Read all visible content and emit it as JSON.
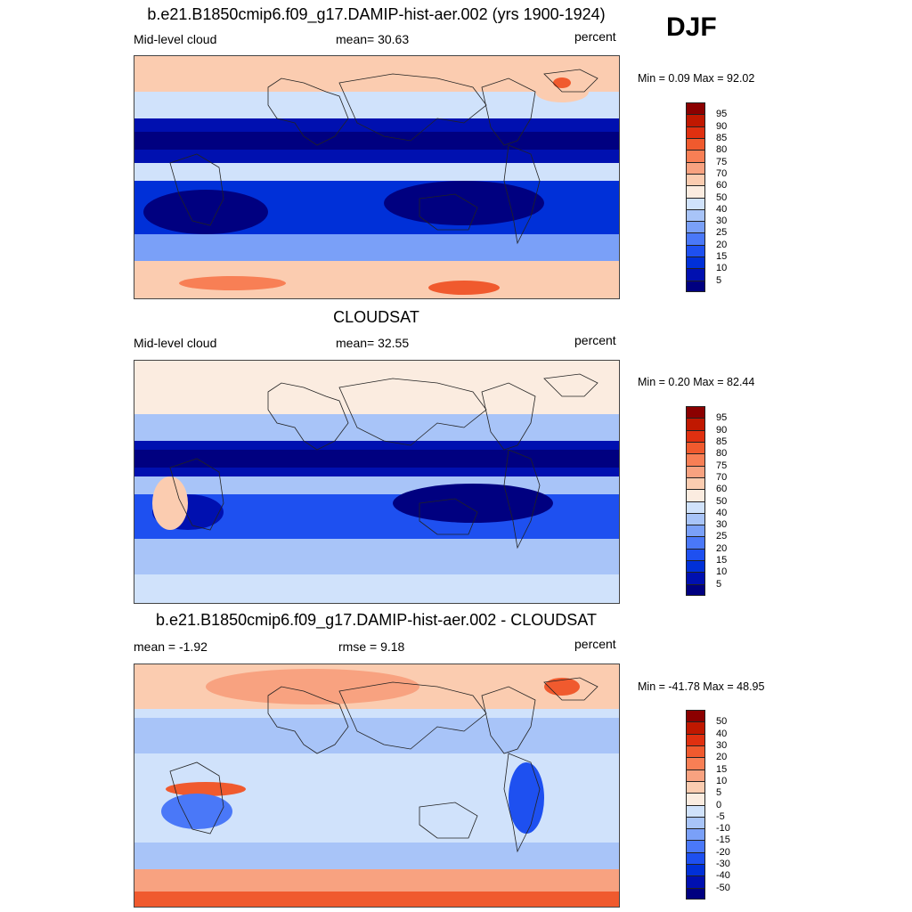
{
  "season": "DJF",
  "colors": {
    "scale": [
      "#000080",
      "#0010b0",
      "#0030d8",
      "#1e50f0",
      "#4a78f8",
      "#7aa0f8",
      "#a8c4f8",
      "#d0e2fb",
      "#fbece0",
      "#fbccb0",
      "#f8a280",
      "#f87f55",
      "#f05a2e",
      "#e03010",
      "#c01800",
      "#8b0000"
    ]
  },
  "panels": [
    {
      "id": "model",
      "title": "b.e21.B1850cmip6.f09_g17.DAMIP-hist-aer.002 (yrs 1900-1924)",
      "left_label": "Mid-level cloud",
      "center_label": "mean=  30.63",
      "right_label": "percent",
      "minmax": "Min =   0.09 Max =  92.02",
      "colorbar_labels": [
        "95",
        "90",
        "85",
        "80",
        "75",
        "70",
        "60",
        "50",
        "40",
        "30",
        "25",
        "20",
        "15",
        "10",
        "5"
      ]
    },
    {
      "id": "obs",
      "title": "CLOUDSAT",
      "left_label": "Mid-level cloud",
      "center_label": "mean=  32.55",
      "right_label": "percent",
      "minmax": "Min =   0.20 Max =  82.44",
      "colorbar_labels": [
        "95",
        "90",
        "85",
        "80",
        "75",
        "70",
        "60",
        "50",
        "40",
        "30",
        "25",
        "20",
        "15",
        "10",
        "5"
      ]
    },
    {
      "id": "diff",
      "title": "b.e21.B1850cmip6.f09_g17.DAMIP-hist-aer.002 - CLOUDSAT",
      "left_label": "mean =  -1.92",
      "center_label": "rmse =   9.18",
      "right_label": "percent",
      "minmax": "Min = -41.78 Max =  48.95",
      "colorbar_labels": [
        "50",
        "40",
        "30",
        "20",
        "15",
        "10",
        "5",
        "0",
        "-5",
        "-10",
        "-15",
        "-20",
        "-30",
        "-40",
        "-50"
      ]
    }
  ]
}
